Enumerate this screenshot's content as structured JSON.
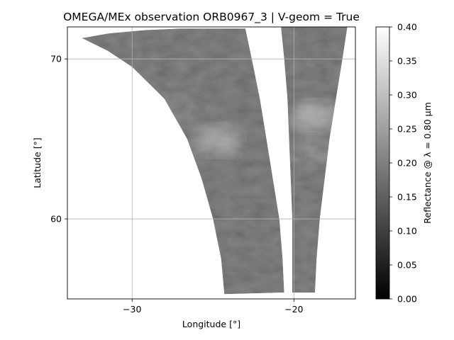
{
  "chart_data": {
    "type": "heatmap",
    "title": "OMEGA/MEx observation ORB0967_3 | V-geom = True",
    "xlabel": "Longitude [°]",
    "ylabel": "Latitude [°]",
    "xlim": [
      -34,
      -16.2
    ],
    "ylim": [
      55,
      72
    ],
    "x_ticks": [
      {
        "value": -30,
        "label": "−30"
      },
      {
        "value": -20,
        "label": "−20"
      }
    ],
    "y_ticks": [
      {
        "value": 60,
        "label": "60"
      },
      {
        "value": 70,
        "label": "70"
      }
    ],
    "grid": true,
    "colorbar": {
      "label": "Reflectance @ λ = 0.80 µm",
      "colormap": "gray",
      "range": [
        0.0,
        0.4
      ],
      "ticks": [
        "0.00",
        "0.05",
        "0.10",
        "0.15",
        "0.20",
        "0.25",
        "0.30",
        "0.35",
        "0.40"
      ]
    },
    "swaths": [
      {
        "outline_lonlat": [
          [
            -33.1,
            71.3
          ],
          [
            -31.4,
            71.6
          ],
          [
            -29.2,
            71.8
          ],
          [
            -27.0,
            71.9
          ],
          [
            -23.0,
            71.9
          ],
          [
            -22.6,
            70.0
          ],
          [
            -22.1,
            67.5
          ],
          [
            -21.7,
            65.0
          ],
          [
            -21.3,
            62.5
          ],
          [
            -20.9,
            60.0
          ],
          [
            -20.7,
            57.5
          ],
          [
            -20.6,
            55.4
          ],
          [
            -24.3,
            55.3
          ],
          [
            -24.5,
            57.5
          ],
          [
            -25.0,
            60.0
          ],
          [
            -25.7,
            62.5
          ],
          [
            -26.6,
            65.0
          ],
          [
            -28.0,
            67.5
          ],
          [
            -30.0,
            69.5
          ],
          [
            -31.5,
            70.5
          ],
          [
            -33.1,
            71.3
          ]
        ],
        "mean_reflectance": 0.16,
        "bright_patches": [
          {
            "lon": -24.7,
            "lat": 64.9,
            "reflectance": 0.26
          },
          {
            "lon": -27.4,
            "lat": 66.8,
            "reflectance": 0.19
          }
        ]
      },
      {
        "outline_lonlat": [
          [
            -20.8,
            72.0
          ],
          [
            -16.7,
            72.0
          ],
          [
            -17.0,
            70.0
          ],
          [
            -17.4,
            67.5
          ],
          [
            -17.8,
            65.0
          ],
          [
            -18.1,
            62.5
          ],
          [
            -18.4,
            60.0
          ],
          [
            -18.6,
            57.5
          ],
          [
            -18.7,
            55.4
          ],
          [
            -20.1,
            55.4
          ],
          [
            -20.1,
            57.5
          ],
          [
            -20.1,
            60.0
          ],
          [
            -20.2,
            62.5
          ],
          [
            -20.3,
            65.0
          ],
          [
            -20.4,
            67.5
          ],
          [
            -20.6,
            70.0
          ],
          [
            -20.8,
            72.0
          ]
        ],
        "mean_reflectance": 0.16,
        "bright_patches": [
          {
            "lon": -18.8,
            "lat": 66.4,
            "reflectance": 0.27
          },
          {
            "lon": -18.6,
            "lat": 64.2,
            "reflectance": 0.2
          }
        ]
      }
    ]
  }
}
